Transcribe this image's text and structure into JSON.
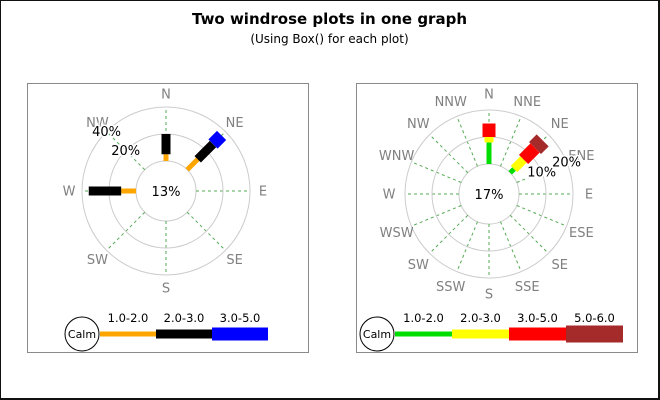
{
  "page": {
    "title": "Two windrose plots in one graph",
    "subtitle": "(Using Box() for each plot)"
  },
  "colors": {
    "background": "#FFFFFF",
    "ring": "#CCCCCC",
    "radial_dash": "#55AA55",
    "direction_label": "#808080",
    "panel_border": "#8A8A8A",
    "text": "#000000",
    "legend_circle_stroke": "#000000"
  },
  "chart_data": [
    {
      "type": "windrose",
      "name": "left-windrose",
      "calm_label": "Calm",
      "calm_percent_label": "13%",
      "directions": [
        "N",
        "NE",
        "E",
        "SE",
        "S",
        "SW",
        "W",
        "NW"
      ],
      "rings": [
        {
          "percent": 20,
          "label": "20%"
        },
        {
          "percent": 40,
          "label": "40%"
        }
      ],
      "ring_label_direction": "NW",
      "speed_bins": [
        {
          "label": "1.0-2.0",
          "color": "#FFA500"
        },
        {
          "label": "2.0-3.0",
          "color": "#000000"
        },
        {
          "label": "3.0-5.0",
          "color": "#0000FF"
        }
      ],
      "data": [
        {
          "direction": "N",
          "values": [
            5,
            15,
            0
          ]
        },
        {
          "direction": "NE",
          "values": [
            11,
            16,
            9
          ]
        },
        {
          "direction": "W",
          "values": [
            11,
            24,
            0
          ]
        }
      ]
    },
    {
      "type": "windrose",
      "name": "right-windrose",
      "calm_label": "Calm",
      "calm_percent_label": "17%",
      "directions": [
        "N",
        "NNE",
        "NE",
        "ENE",
        "E",
        "ESE",
        "SE",
        "SSE",
        "S",
        "SSW",
        "SW",
        "WSW",
        "W",
        "WNW",
        "NW",
        "NNW"
      ],
      "rings": [
        {
          "percent": 10,
          "label": "10%"
        },
        {
          "percent": 20,
          "label": "20%"
        }
      ],
      "ring_label_direction": "ENE",
      "speed_bins": [
        {
          "label": "1.0-2.0",
          "color": "#00DD00"
        },
        {
          "label": "2.0-3.0",
          "color": "#FFFF00"
        },
        {
          "label": "3.0-5.0",
          "color": "#FF0000"
        },
        {
          "label": "5.0-6.0",
          "color": "#A52A2A"
        }
      ],
      "data": [
        {
          "direction": "N",
          "values": [
            8,
            2,
            5,
            0
          ]
        },
        {
          "direction": "NE",
          "values": [
            2,
            5,
            6,
            4
          ]
        }
      ]
    }
  ]
}
